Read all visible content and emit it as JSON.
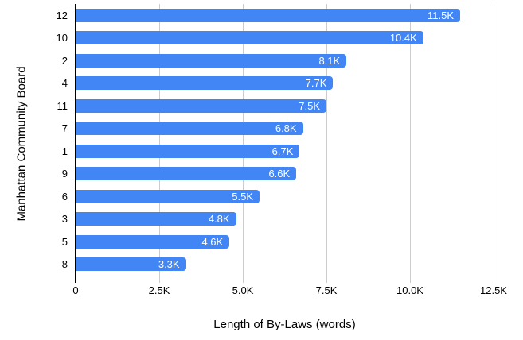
{
  "chart_data": {
    "type": "bar",
    "orientation": "horizontal",
    "title": "",
    "xlabel": "Length of By-Laws (words)",
    "ylabel": "Manhattan Community Board",
    "categories": [
      "12",
      "10",
      "2",
      "4",
      "11",
      "7",
      "1",
      "9",
      "6",
      "3",
      "5",
      "8"
    ],
    "values": [
      11500,
      10400,
      8100,
      7700,
      7500,
      6800,
      6700,
      6600,
      5500,
      4800,
      4600,
      3300
    ],
    "bar_labels": [
      "11.5K",
      "10.4K",
      "8.1K",
      "7.7K",
      "7.5K",
      "6.8K",
      "6.7K",
      "6.6K",
      "5.5K",
      "4.8K",
      "4.6K",
      "3.3K"
    ],
    "xlim": [
      0,
      12500
    ],
    "x_ticks": [
      {
        "value": 0,
        "label": "0"
      },
      {
        "value": 2500,
        "label": "2.5K"
      },
      {
        "value": 5000,
        "label": "5.0K"
      },
      {
        "value": 7500,
        "label": "7.5K"
      },
      {
        "value": 10000,
        "label": "10.0K"
      },
      {
        "value": 12500,
        "label": "12.5K"
      }
    ],
    "grid": "vertical-only",
    "legend": "none",
    "colors": {
      "bar": "#4285F4",
      "bar_label": "#ffffff",
      "gridline": "#cccccc",
      "axis_line": "#000000",
      "text": "#000000",
      "background": "#ffffff"
    }
  }
}
